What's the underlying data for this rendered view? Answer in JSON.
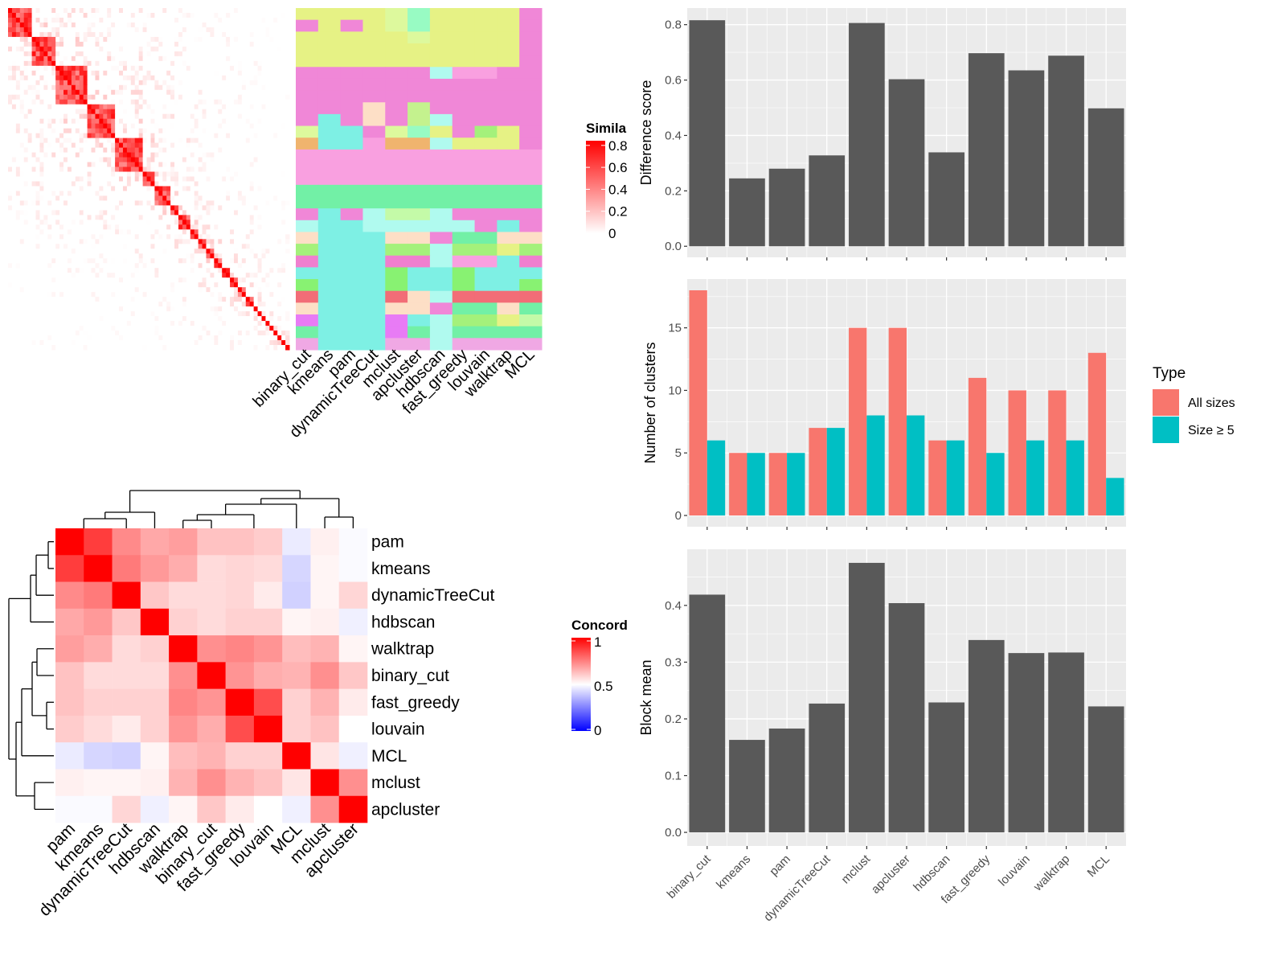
{
  "chart_data": [
    {
      "id": "similarity_heatmap",
      "type": "heatmap",
      "title": "",
      "legend": {
        "title": "Similarity",
        "title_visible": "Simila",
        "ticks": [
          "0",
          "0.2",
          "0.4",
          "0.6",
          "0.8"
        ],
        "range": [
          0,
          0.8
        ],
        "colors": [
          "#FFFFFF",
          "#FF0000"
        ]
      },
      "note": "Term similarity matrix with block-diagonal structure (approximate)",
      "blocks": [
        6,
        6,
        8,
        7,
        7,
        3,
        4,
        2,
        3,
        2,
        2,
        2,
        2,
        2,
        2,
        2,
        2,
        1,
        1,
        1,
        1,
        1,
        1,
        1,
        1,
        1
      ]
    },
    {
      "id": "cluster_annotation",
      "type": "heatmap",
      "columns": [
        "binary_cut",
        "kmeans",
        "pam",
        "dynamicTreeCut",
        "mclust",
        "apcluster",
        "hdbscan",
        "fast_greedy",
        "louvain",
        "walktrap",
        "MCL"
      ],
      "rows": [
        [
          "#E6F285",
          "#E6F285",
          "#E6F285",
          "#E6F285",
          "#DDF99D",
          "#98FBC3",
          "#E6F285",
          "#E6F285",
          "#E6F285",
          "#E6F285",
          "#F087D7"
        ],
        [
          "#F087D7",
          "#E6F285",
          "#F087D7",
          "#E6F285",
          "#DDF99D",
          "#98FBC3",
          "#E6F285",
          "#E6F285",
          "#E6F285",
          "#E6F285",
          "#F087D7"
        ],
        [
          "#E6F285",
          "#E6F285",
          "#E6F285",
          "#E6F285",
          "#E6F285",
          "#DDF99D",
          "#E6F285",
          "#E6F285",
          "#E6F285",
          "#E6F285",
          "#F087D7"
        ],
        [
          "#E6F285",
          "#E6F285",
          "#E6F285",
          "#E6F285",
          "#E6F285",
          "#E6F285",
          "#E6F285",
          "#E6F285",
          "#E6F285",
          "#E6F285",
          "#F087D7"
        ],
        [
          "#E6F285",
          "#E6F285",
          "#E6F285",
          "#E6F285",
          "#E6F285",
          "#E6F285",
          "#E6F285",
          "#E6F285",
          "#E6F285",
          "#E6F285",
          "#F087D7"
        ],
        [
          "#F087D7",
          "#F087D7",
          "#F087D7",
          "#F087D7",
          "#F087D7",
          "#F087D7",
          "#B0FAEF",
          "#F9A0E0",
          "#F9A0E0",
          "#F087D7",
          "#F087D7"
        ],
        [
          "#F087D7",
          "#F087D7",
          "#F087D7",
          "#F087D7",
          "#F087D7",
          "#F087D7",
          "#F087D7",
          "#F087D7",
          "#F087D7",
          "#F087D7",
          "#F087D7"
        ],
        [
          "#F087D7",
          "#F087D7",
          "#F087D7",
          "#F087D7",
          "#F087D7",
          "#F087D7",
          "#F087D7",
          "#F087D7",
          "#F087D7",
          "#F087D7",
          "#F087D7"
        ],
        [
          "#F087D7",
          "#F087D7",
          "#F087D7",
          "#FDDFC6",
          "#F087D7",
          "#C4F28E",
          "#F087D7",
          "#F087D7",
          "#F087D7",
          "#F087D7",
          "#F087D7"
        ],
        [
          "#F087D7",
          "#7EF0E4",
          "#F087D7",
          "#FDDFC6",
          "#F087D7",
          "#C4F28E",
          "#B0FAEF",
          "#F087D7",
          "#F087D7",
          "#F087D7",
          "#F087D7"
        ],
        [
          "#DDF99D",
          "#7EF0E4",
          "#7EF0E4",
          "#F087D7",
          "#DDF99D",
          "#98FBC3",
          "#E6F285",
          "#F087D7",
          "#A4F17B",
          "#E6F285",
          "#F087D7"
        ],
        [
          "#F0B46E",
          "#7EF0E4",
          "#7EF0E4",
          "#F9A0E0",
          "#F0B46E",
          "#F0B46E",
          "#B0FAEF",
          "#E6F285",
          "#E6F285",
          "#E6F285",
          "#F087D7"
        ],
        [
          "#F9A0E0",
          "#F9A0E0",
          "#F9A0E0",
          "#F9A0E0",
          "#F9A0E0",
          "#F9A0E0",
          "#F9A0E0",
          "#F9A0E0",
          "#F9A0E0",
          "#F9A0E0",
          "#F9A0E0"
        ],
        [
          "#F9A0E0",
          "#F9A0E0",
          "#F9A0E0",
          "#F9A0E0",
          "#F9A0E0",
          "#F9A0E0",
          "#F9A0E0",
          "#F9A0E0",
          "#F9A0E0",
          "#F9A0E0",
          "#F9A0E0"
        ],
        [
          "#F9A0E0",
          "#F9A0E0",
          "#F9A0E0",
          "#F9A0E0",
          "#F9A0E0",
          "#F9A0E0",
          "#F9A0E0",
          "#F9A0E0",
          "#F9A0E0",
          "#F9A0E0",
          "#F9A0E0"
        ],
        [
          "#72F0A6",
          "#72F0A6",
          "#72F0A6",
          "#72F0A6",
          "#72F0A6",
          "#72F0A6",
          "#72F0A6",
          "#72F0A6",
          "#72F0A6",
          "#72F0A6",
          "#72F0A6"
        ],
        [
          "#72F0A6",
          "#72F0A6",
          "#72F0A6",
          "#72F0A6",
          "#72F0A6",
          "#72F0A6",
          "#72F0A6",
          "#72F0A6",
          "#72F0A6",
          "#72F0A6",
          "#72F0A6"
        ],
        [
          "#F087D7",
          "#7EF0E4",
          "#F087D7",
          "#B0FAEF",
          "#C4FAA8",
          "#C4FAA8",
          "#B0FAEF",
          "#F087D7",
          "#F087D7",
          "#F087D7",
          "#F087D7"
        ],
        [
          "#B0FAEF",
          "#7EF0E4",
          "#7EF0E4",
          "#B0FAEF",
          "#B0FAEF",
          "#B0FAEF",
          "#B0FAEF",
          "#B0FAEF",
          "#F087D7",
          "#7EF0E4",
          "#F087D7"
        ],
        [
          "#FDDFC6",
          "#7EF0E4",
          "#7EF0E4",
          "#7EF0E4",
          "#FDDFC6",
          "#FDDFC6",
          "#F087D7",
          "#72F0A6",
          "#72F0A6",
          "#FDDFC6",
          "#FDDFC6"
        ],
        [
          "#A4F17B",
          "#7EF0E4",
          "#7EF0E4",
          "#7EF0E4",
          "#A4F17B",
          "#A4F17B",
          "#B0FAEF",
          "#A4F17B",
          "#A4F17B",
          "#E6F285",
          "#A4F17B"
        ],
        [
          "#F07FCF",
          "#7EF0E4",
          "#7EF0E4",
          "#7EF0E4",
          "#F07FCF",
          "#F07FCF",
          "#B0FAEF",
          "#F9A0E0",
          "#F9A0E0",
          "#7EF0E4",
          "#F07FCF"
        ],
        [
          "#7EF0E4",
          "#7EF0E4",
          "#7EF0E4",
          "#7EF0E4",
          "#88F272",
          "#7EF0E4",
          "#7EF0E4",
          "#88F272",
          "#7EF0E4",
          "#7EF0E4",
          "#7EF0E4"
        ],
        [
          "#88F272",
          "#7EF0E4",
          "#7EF0E4",
          "#7EF0E4",
          "#88F272",
          "#7EF0E4",
          "#7EF0E4",
          "#88F272",
          "#7EF0E4",
          "#7EF0E4",
          "#88F272"
        ],
        [
          "#F26D77",
          "#7EF0E4",
          "#7EF0E4",
          "#7EF0E4",
          "#F26D77",
          "#FDDFC6",
          "#B0FAEF",
          "#F26D77",
          "#F26D77",
          "#F26D77",
          "#F26D77"
        ],
        [
          "#FDDFC6",
          "#7EF0E4",
          "#7EF0E4",
          "#7EF0E4",
          "#FDDFC6",
          "#FDDFC6",
          "#F087D7",
          "#72F0A6",
          "#72F0A6",
          "#FDDFC6",
          "#72F0A6"
        ],
        [
          "#E87BF5",
          "#7EF0E4",
          "#7EF0E4",
          "#7EF0E4",
          "#E87BF5",
          "#7EF0E4",
          "#B0FAEF",
          "#A4F17B",
          "#A4F17B",
          "#E6F285",
          "#C4FAA8"
        ],
        [
          "#72F0A6",
          "#7EF0E4",
          "#7EF0E4",
          "#7EF0E4",
          "#E87BF5",
          "#72F0A6",
          "#B0FAEF",
          "#72F0A6",
          "#72F0A6",
          "#72F0A6",
          "#72F0A6"
        ],
        [
          "#F0A8E4",
          "#7EF0E4",
          "#7EF0E4",
          "#7EF0E4",
          "#F0A8E4",
          "#F0A8E4",
          "#B0FAEF",
          "#F0A8E4",
          "#F0A8E4",
          "#F0A8E4",
          "#F0A8E4"
        ]
      ]
    },
    {
      "id": "concordance_heatmap",
      "type": "heatmap",
      "legend": {
        "title": "Concordance",
        "title_visible": "Concord",
        "ticks": [
          "0",
          "0.5",
          "1"
        ],
        "range": [
          0,
          1
        ],
        "colors": [
          "#0000FF",
          "#FFFFFF",
          "#FF0000"
        ]
      },
      "labels": [
        "pam",
        "kmeans",
        "dynamicTreeCut",
        "hdbscan",
        "walktrap",
        "binary_cut",
        "fast_greedy",
        "louvain",
        "MCL",
        "mclust",
        "apcluster"
      ],
      "matrix": [
        [
          1.0,
          0.88,
          0.73,
          0.67,
          0.69,
          0.62,
          0.62,
          0.6,
          0.46,
          0.53,
          0.49
        ],
        [
          0.88,
          1.0,
          0.76,
          0.7,
          0.66,
          0.57,
          0.58,
          0.57,
          0.42,
          0.52,
          0.49
        ],
        [
          0.73,
          0.76,
          1.0,
          0.61,
          0.57,
          0.57,
          0.58,
          0.54,
          0.41,
          0.52,
          0.58
        ],
        [
          0.67,
          0.7,
          0.61,
          1.0,
          0.59,
          0.57,
          0.59,
          0.59,
          0.52,
          0.53,
          0.47
        ],
        [
          0.69,
          0.66,
          0.57,
          0.59,
          1.0,
          0.72,
          0.74,
          0.71,
          0.63,
          0.65,
          0.52
        ],
        [
          0.62,
          0.57,
          0.57,
          0.57,
          0.72,
          1.0,
          0.71,
          0.66,
          0.65,
          0.72,
          0.61
        ],
        [
          0.62,
          0.59,
          0.59,
          0.59,
          0.74,
          0.71,
          1.0,
          0.85,
          0.59,
          0.65,
          0.54
        ],
        [
          0.6,
          0.57,
          0.54,
          0.59,
          0.71,
          0.66,
          0.85,
          1.0,
          0.59,
          0.62,
          0.5
        ],
        [
          0.46,
          0.42,
          0.41,
          0.52,
          0.63,
          0.65,
          0.59,
          0.59,
          1.0,
          0.55,
          0.47
        ],
        [
          0.53,
          0.52,
          0.52,
          0.53,
          0.65,
          0.72,
          0.65,
          0.62,
          0.55,
          1.0,
          0.72
        ],
        [
          0.49,
          0.49,
          0.58,
          0.47,
          0.52,
          0.61,
          0.54,
          0.5,
          0.47,
          0.72,
          1.0
        ]
      ]
    },
    {
      "id": "difference_score",
      "type": "bar",
      "categories": [
        "binary_cut",
        "kmeans",
        "pam",
        "dynamicTreeCut",
        "mclust",
        "apcluster",
        "hdbscan",
        "fast_greedy",
        "louvain",
        "walktrap",
        "MCL"
      ],
      "values": [
        0.816,
        0.245,
        0.28,
        0.328,
        0.806,
        0.603,
        0.339,
        0.697,
        0.635,
        0.688,
        0.498
      ],
      "xlabel": "",
      "ylabel": "Difference score",
      "ylim": [
        -0.04,
        0.86
      ],
      "yticks": [
        0.0,
        0.2,
        0.4,
        0.6,
        0.8
      ],
      "ytick_labels": [
        "0.0",
        "0.2",
        "0.4",
        "0.6",
        "0.8"
      ],
      "color": "#595959",
      "grid": true
    },
    {
      "id": "number_of_clusters",
      "type": "bar",
      "categories": [
        "binary_cut",
        "kmeans",
        "pam",
        "dynamicTreeCut",
        "mclust",
        "apcluster",
        "hdbscan",
        "fast_greedy",
        "louvain",
        "walktrap",
        "MCL"
      ],
      "series": [
        {
          "name": "All sizes",
          "values": [
            18,
            5,
            5,
            7,
            15,
            15,
            6,
            11,
            10,
            10,
            13
          ],
          "color": "#F8766D"
        },
        {
          "name": "Size ≥ 5",
          "values": [
            6,
            5,
            5,
            7,
            8,
            8,
            6,
            5,
            6,
            6,
            3
          ],
          "color": "#00BFC4"
        }
      ],
      "xlabel": "",
      "ylabel": "Number of clusters",
      "ylim": [
        -0.9,
        18.9
      ],
      "yticks": [
        0,
        5,
        10,
        15
      ],
      "ytick_labels": [
        "0",
        "5",
        "10",
        "15"
      ],
      "legend": {
        "title": "Type",
        "position": "right"
      },
      "grid": true
    },
    {
      "id": "block_mean",
      "type": "bar",
      "categories": [
        "binary_cut",
        "kmeans",
        "pam",
        "dynamicTreeCut",
        "mclust",
        "apcluster",
        "hdbscan",
        "fast_greedy",
        "louvain",
        "walktrap",
        "MCL"
      ],
      "values": [
        0.419,
        0.163,
        0.183,
        0.227,
        0.475,
        0.404,
        0.229,
        0.339,
        0.316,
        0.317,
        0.222
      ],
      "xlabel": "",
      "ylabel": "Block mean",
      "ylim": [
        -0.024,
        0.499
      ],
      "yticks": [
        0.0,
        0.1,
        0.2,
        0.3,
        0.4
      ],
      "ytick_labels": [
        "0.0",
        "0.1",
        "0.2",
        "0.3",
        "0.4"
      ],
      "color": "#595959",
      "grid": true
    }
  ]
}
